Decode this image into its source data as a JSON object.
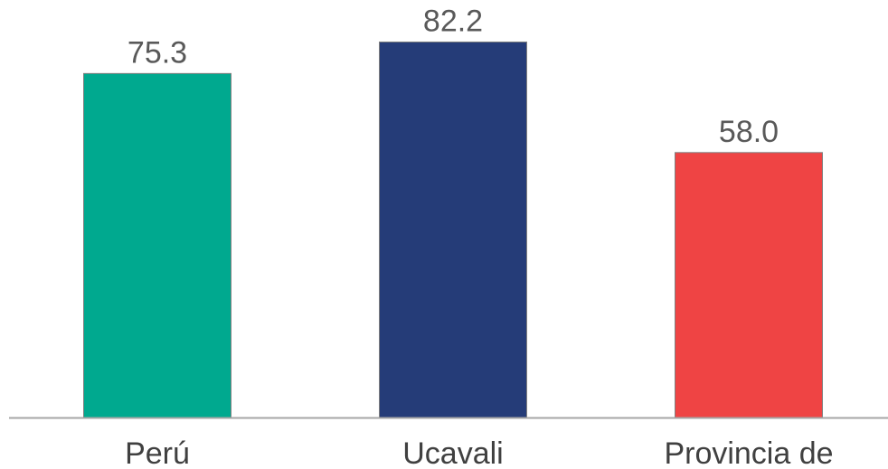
{
  "chart_data": {
    "type": "bar",
    "categories": [
      "Perú",
      "Ucavali",
      "Provincia de"
    ],
    "values": [
      75.3,
      82.2,
      58.0
    ],
    "value_labels": [
      "75.3",
      "82.2",
      "58.0"
    ],
    "colors": [
      "#00A98F",
      "#253C78",
      "#EF4444"
    ],
    "ylim": [
      0,
      100
    ],
    "grid": false,
    "legend": "none",
    "axis_color": "#A6A6A6",
    "bar_border_color": "#7F7F7F"
  }
}
